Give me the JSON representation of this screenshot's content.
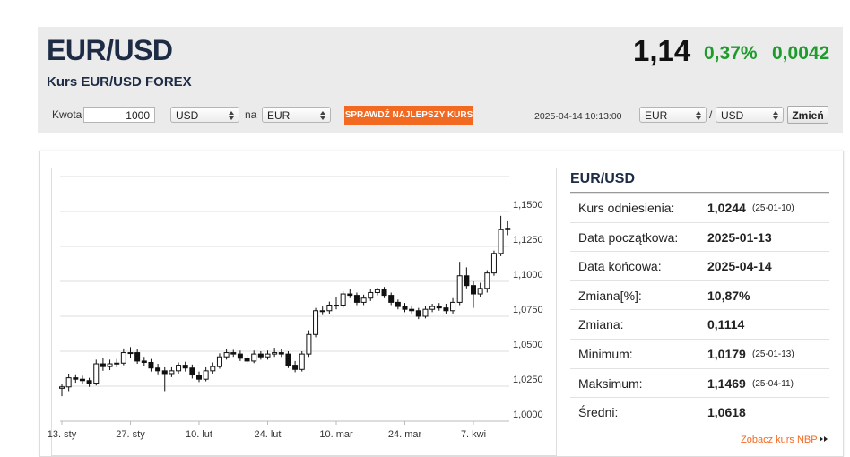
{
  "header": {
    "title": "EUR/USD",
    "subtitle": "Kurs EUR/USD FOREX",
    "price": "1,14",
    "change_pct": "0,37%",
    "change": "0,0042"
  },
  "form": {
    "amount_label": "Kwota",
    "amount": "1000",
    "from_currency": "USD",
    "to_label": "na",
    "to_currency": "EUR",
    "button": "SPRAWDŹ NAJLEPSZY KURS",
    "timestamp": "2025-04-14 10:13:00",
    "pair_base": "EUR",
    "pair_separator": "/",
    "pair_quote": "USD",
    "swap_button": "Zmień"
  },
  "chart_data": {
    "type": "candlestick",
    "categories": [
      "13. sty",
      null,
      null,
      null,
      null,
      null,
      null,
      null,
      null,
      null,
      "27. sty",
      null,
      null,
      null,
      null,
      null,
      null,
      null,
      null,
      null,
      "10. lut",
      null,
      null,
      null,
      null,
      null,
      null,
      null,
      null,
      null,
      "24. lut",
      null,
      null,
      null,
      null,
      null,
      null,
      null,
      null,
      null,
      "10. mar",
      null,
      null,
      null,
      null,
      null,
      null,
      null,
      null,
      null,
      "24. mar",
      null,
      null,
      null,
      null,
      null,
      null,
      null,
      null,
      null,
      "7. kwi",
      null,
      null,
      null,
      null,
      null
    ],
    "open": [
      1.0235,
      1.0245,
      1.031,
      1.03,
      1.029,
      1.0272,
      1.041,
      1.039,
      1.041,
      1.0415,
      1.049,
      1.049,
      1.043,
      1.042,
      1.038,
      1.036,
      1.034,
      1.036,
      1.04,
      1.038,
      1.033,
      1.03,
      1.036,
      1.039,
      1.046,
      1.049,
      1.048,
      1.045,
      1.043,
      1.048,
      1.046,
      1.048,
      1.049,
      1.048,
      1.04,
      1.037,
      1.048,
      1.062,
      1.079,
      1.079,
      1.083,
      1.083,
      1.091,
      1.09,
      1.085,
      1.088,
      1.092,
      1.094,
      1.09,
      1.085,
      1.082,
      1.08,
      1.079,
      1.075,
      1.08,
      1.082,
      1.081,
      1.079,
      1.085,
      1.104,
      1.097,
      1.091,
      1.095,
      1.106,
      1.12,
      1.137
    ],
    "high": [
      1.0266,
      1.034,
      1.0335,
      1.0325,
      1.031,
      1.044,
      1.0455,
      1.044,
      1.0445,
      1.052,
      1.053,
      1.0515,
      1.046,
      1.0445,
      1.041,
      1.0385,
      1.0385,
      1.042,
      1.0425,
      1.0405,
      1.0355,
      1.0385,
      1.042,
      1.0485,
      1.0515,
      1.051,
      1.0505,
      1.0475,
      1.0505,
      1.05,
      1.0505,
      1.0525,
      1.0515,
      1.05,
      1.043,
      1.05,
      1.065,
      1.081,
      1.082,
      1.0855,
      1.089,
      1.093,
      1.0945,
      1.092,
      1.0905,
      1.0945,
      1.0955,
      1.096,
      1.092,
      1.087,
      1.0845,
      1.082,
      1.081,
      1.0825,
      1.084,
      1.0845,
      1.084,
      1.088,
      1.114,
      1.11,
      1.1,
      1.099,
      1.108,
      1.122,
      1.1469,
      1.143
    ],
    "low": [
      1.0179,
      1.0215,
      1.0275,
      1.0265,
      1.0245,
      1.0255,
      1.036,
      1.0365,
      1.0385,
      1.04,
      1.0455,
      1.041,
      1.0395,
      1.0355,
      1.0335,
      1.0215,
      1.0315,
      1.034,
      1.0355,
      1.0305,
      1.028,
      1.0285,
      1.034,
      1.0375,
      1.044,
      1.046,
      1.043,
      1.041,
      1.0415,
      1.044,
      1.044,
      1.046,
      1.046,
      1.038,
      1.035,
      1.0355,
      1.046,
      1.06,
      1.0765,
      1.077,
      1.08,
      1.081,
      1.088,
      1.083,
      1.083,
      1.086,
      1.09,
      1.088,
      1.083,
      1.08,
      1.078,
      1.077,
      1.073,
      1.0735,
      1.078,
      1.079,
      1.077,
      1.077,
      1.083,
      1.095,
      1.081,
      1.089,
      1.092,
      1.104,
      1.118,
      1.133
    ],
    "close": [
      1.0245,
      1.031,
      1.03,
      1.029,
      1.0272,
      1.041,
      1.039,
      1.041,
      1.0415,
      1.049,
      1.049,
      1.043,
      1.042,
      1.038,
      1.036,
      1.034,
      1.036,
      1.04,
      1.038,
      1.033,
      1.03,
      1.036,
      1.039,
      1.046,
      1.049,
      1.048,
      1.045,
      1.043,
      1.048,
      1.046,
      1.048,
      1.049,
      1.048,
      1.04,
      1.037,
      1.048,
      1.062,
      1.079,
      1.079,
      1.083,
      1.083,
      1.091,
      1.09,
      1.085,
      1.088,
      1.092,
      1.094,
      1.09,
      1.085,
      1.082,
      1.08,
      1.079,
      1.075,
      1.08,
      1.082,
      1.081,
      1.079,
      1.085,
      1.104,
      1.097,
      1.091,
      1.095,
      1.106,
      1.12,
      1.137,
      1.138
    ],
    "up_color": "#ffffff",
    "down_color": "#111111",
    "ylim": [
      1.0,
      1.175
    ],
    "yticks": [
      {
        "value": 1.0,
        "label": "1,0000"
      },
      {
        "value": 1.025,
        "label": "1,0250"
      },
      {
        "value": 1.05,
        "label": "1,0500"
      },
      {
        "value": 1.075,
        "label": "1,0750"
      },
      {
        "value": 1.1,
        "label": "1,1000"
      },
      {
        "value": 1.125,
        "label": "1,1250"
      },
      {
        "value": 1.15,
        "label": "1,1500"
      }
    ],
    "grid": true
  },
  "summary": {
    "title": "EUR/USD",
    "rows": [
      {
        "label": "Kurs odniesienia:",
        "value": "1,0244",
        "date": "(25-01-10)"
      },
      {
        "label": "Data początkowa:",
        "value": "2025-01-13"
      },
      {
        "label": "Data końcowa:",
        "value": "2025-04-14"
      },
      {
        "label": "Zmiana[%]:",
        "value": "10,87%"
      },
      {
        "label": "Zmiana:",
        "value": "0,1114"
      },
      {
        "label": "Minimum:",
        "value": "1,0179",
        "date": "(25-01-13)"
      },
      {
        "label": "Maksimum:",
        "value": "1,1469",
        "date": "(25-04-11)"
      },
      {
        "label": "Średni:",
        "value": "1,0618"
      }
    ],
    "link": "Zobacz kurs NBP"
  }
}
